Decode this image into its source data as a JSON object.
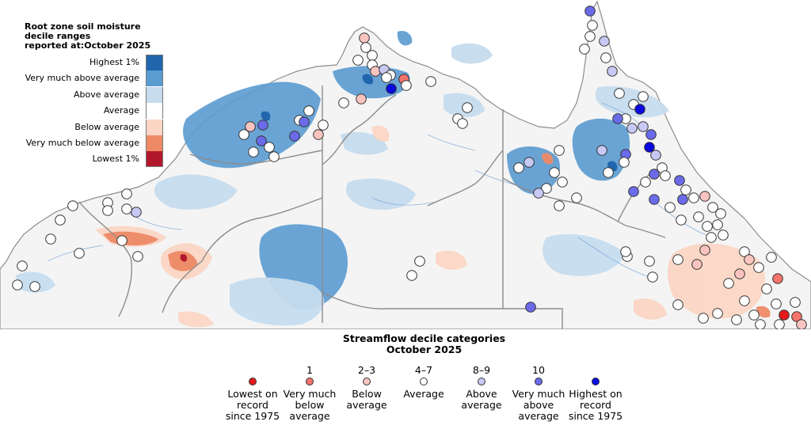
{
  "soil_moisture_legend": {
    "title_lines": [
      "Root zone soil moisture",
      "decile ranges",
      "reported at:October 2025"
    ],
    "items": [
      {
        "label": "Highest 1%",
        "color": "#2166ac"
      },
      {
        "label": "Very much above average",
        "color": "#5a9bd0"
      },
      {
        "label": "Above average",
        "color": "#c6dcee"
      },
      {
        "label": "Average",
        "color": "#ffffff"
      },
      {
        "label": "Below average",
        "color": "#fbd6c4"
      },
      {
        "label": "Very much below average",
        "color": "#ee8a66"
      },
      {
        "label": "Lowest 1%",
        "color": "#b2182b"
      }
    ]
  },
  "streamflow_legend": {
    "title_lines": [
      "Streamflow decile categories",
      "October 2025"
    ],
    "items": [
      {
        "rank": "",
        "label_lines": [
          "Lowest on",
          "record",
          "since 1975"
        ],
        "color": "#e41a1c"
      },
      {
        "rank": "1",
        "label_lines": [
          "Very much",
          "below",
          "average"
        ],
        "color": "#f4736b"
      },
      {
        "rank": "2–3",
        "label_lines": [
          "Below",
          "average"
        ],
        "color": "#f9c4c0"
      },
      {
        "rank": "4–7",
        "label_lines": [
          "Average"
        ],
        "color": "#ffffff"
      },
      {
        "rank": "8–9",
        "label_lines": [
          "Above",
          "average"
        ],
        "color": "#c8c8f4"
      },
      {
        "rank": "10",
        "label_lines": [
          "Very much",
          "above",
          "average"
        ],
        "color": "#6b6bea"
      },
      {
        "rank": "",
        "label_lines": [
          "Highest on",
          "record",
          "since 1975"
        ],
        "color": "#0a0ae0"
      }
    ]
  },
  "map": {
    "ocean_color": "#ffffff",
    "land_color": "#f4f4f4",
    "border_color": "#8c8c8c",
    "river_color": "#6fa0d6",
    "category_codes": {
      "L": "lowest",
      "VB": "very_much_below",
      "B": "below",
      "A": "average",
      "AA": "above",
      "VA": "very_much_above",
      "H": "highest"
    }
  }
}
